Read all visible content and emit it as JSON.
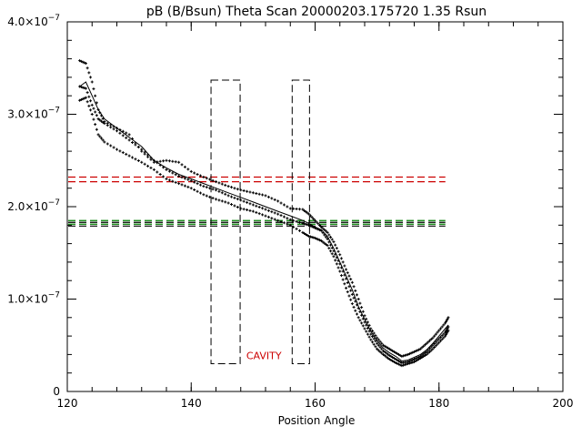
{
  "chart_data": {
    "type": "scatter",
    "title": "pB (B/Bsun) Theta Scan 20000203.175720 1.35 Rsun",
    "xlabel": "Position Angle",
    "ylabel": "",
    "xlim": [
      120,
      200
    ],
    "ylim": [
      0,
      4e-07
    ],
    "grid": false,
    "legend": "none",
    "x_ticks": [
      {
        "value": 120,
        "label": "120"
      },
      {
        "value": 140,
        "label": "140"
      },
      {
        "value": 160,
        "label": "160"
      },
      {
        "value": 180,
        "label": "180"
      },
      {
        "value": 200,
        "label": "200"
      }
    ],
    "y_ticks": [
      {
        "value": 0,
        "mant": "0",
        "exp": ""
      },
      {
        "value": 1e-07,
        "mant": "1.0×10",
        "exp": "−7"
      },
      {
        "value": 2e-07,
        "mant": "2.0×10",
        "exp": "−7"
      },
      {
        "value": 3e-07,
        "mant": "3.0×10",
        "exp": "−7"
      },
      {
        "value": 4e-07,
        "mant": "4.0×10",
        "exp": "−7"
      }
    ],
    "series": [
      {
        "role": "mean",
        "style": "line",
        "x": [
          122,
          123,
          124,
          125,
          126,
          128,
          130,
          132,
          134,
          136,
          138,
          140,
          142,
          144,
          146,
          148,
          150,
          152,
          154,
          156,
          158,
          159,
          160,
          161,
          162,
          163,
          164,
          165,
          166,
          167,
          168,
          169,
          170,
          171,
          172,
          173,
          174,
          175,
          176,
          177,
          178,
          179,
          180,
          181,
          181.5
        ],
        "y": [
          3.3e-07,
          3.35e-07,
          3.2e-07,
          3.05e-07,
          2.95e-07,
          2.85e-07,
          2.75e-07,
          2.65e-07,
          2.5e-07,
          2.42e-07,
          2.35e-07,
          2.3e-07,
          2.25e-07,
          2.2e-07,
          2.15e-07,
          2.1e-07,
          2.05e-07,
          2e-07,
          1.95e-07,
          1.9e-07,
          1.85e-07,
          1.82e-07,
          1.78e-07,
          1.75e-07,
          1.68e-07,
          1.55e-07,
          1.4e-07,
          1.25e-07,
          1.1e-07,
          9.2e-08,
          7.8e-08,
          6.5e-08,
          5.5e-08,
          4.7e-08,
          4.2e-08,
          3.8e-08,
          3.3e-08,
          3.4e-08,
          3.7e-08,
          4e-08,
          4.5e-08,
          5.2e-08,
          6e-08,
          6.8e-08,
          7.2e-08
        ]
      },
      {
        "role": "upper",
        "style": "plus",
        "x": [
          122,
          123,
          124,
          125,
          126,
          128,
          130,
          132,
          134,
          136,
          138,
          140,
          142,
          144,
          146,
          148,
          150,
          152,
          154,
          156,
          158,
          159,
          160,
          161,
          162,
          163,
          164,
          165,
          166,
          167,
          168,
          169,
          170,
          171,
          172,
          173,
          174,
          175,
          176,
          177,
          178,
          179,
          180,
          181,
          181.5
        ],
        "y": [
          3.58e-07,
          3.55e-07,
          3.35e-07,
          3.05e-07,
          2.92e-07,
          2.85e-07,
          2.78e-07,
          2.6e-07,
          2.48e-07,
          2.5e-07,
          2.48e-07,
          2.38e-07,
          2.32e-07,
          2.27e-07,
          2.22e-07,
          2.18e-07,
          2.15e-07,
          2.12e-07,
          2.06e-07,
          1.98e-07,
          1.97e-07,
          1.92e-07,
          1.85e-07,
          1.78e-07,
          1.72e-07,
          1.62e-07,
          1.48e-07,
          1.32e-07,
          1.18e-07,
          1e-07,
          8.2e-08,
          6.8e-08,
          5.8e-08,
          5e-08,
          4.6e-08,
          4.2e-08,
          3.8e-08,
          4e-08,
          4.3e-08,
          4.6e-08,
          5.2e-08,
          5.8e-08,
          6.6e-08,
          7.4e-08,
          8e-08
        ]
      },
      {
        "role": "middle",
        "style": "plus",
        "x": [
          122,
          123,
          124,
          125,
          126,
          128,
          130,
          132,
          134,
          136,
          138,
          140,
          142,
          144,
          146,
          148,
          150,
          152,
          154,
          156,
          158,
          159,
          160,
          161,
          162,
          163,
          164,
          165,
          166,
          167,
          168,
          169,
          170,
          171,
          172,
          173,
          174,
          175,
          176,
          177,
          178,
          179,
          180,
          181,
          181.5
        ],
        "y": [
          3.3e-07,
          3.28e-07,
          3.1e-07,
          2.95e-07,
          2.9e-07,
          2.82e-07,
          2.72e-07,
          2.62e-07,
          2.5e-07,
          2.4e-07,
          2.33e-07,
          2.28e-07,
          2.22e-07,
          2.18e-07,
          2.12e-07,
          2.07e-07,
          2.02e-07,
          1.97e-07,
          1.92e-07,
          1.86e-07,
          1.82e-07,
          1.8e-07,
          1.77e-07,
          1.74e-07,
          1.65e-07,
          1.52e-07,
          1.38e-07,
          1.22e-07,
          1.05e-07,
          9e-08,
          7.5e-08,
          6.2e-08,
          5.2e-08,
          4.4e-08,
          3.9e-08,
          3.5e-08,
          3.1e-08,
          3.2e-08,
          3.5e-08,
          3.8e-08,
          4.3e-08,
          5e-08,
          5.7e-08,
          6.4e-08,
          7e-08
        ]
      },
      {
        "role": "lower",
        "style": "plus",
        "x": [
          122,
          123,
          124,
          125,
          126,
          128,
          130,
          132,
          134,
          136,
          138,
          140,
          142,
          144,
          146,
          148,
          150,
          152,
          154,
          156,
          158,
          159,
          160,
          161,
          162,
          163,
          164,
          165,
          166,
          167,
          168,
          169,
          170,
          171,
          172,
          173,
          174,
          175,
          176,
          177,
          178,
          179,
          180,
          181,
          181.5
        ],
        "y": [
          3.15e-07,
          3.18e-07,
          3e-07,
          2.78e-07,
          2.7e-07,
          2.62e-07,
          2.55e-07,
          2.48e-07,
          2.4e-07,
          2.3e-07,
          2.25e-07,
          2.2e-07,
          2.13e-07,
          2.08e-07,
          2.04e-07,
          1.98e-07,
          1.95e-07,
          1.9e-07,
          1.85e-07,
          1.8e-07,
          1.72e-07,
          1.68e-07,
          1.66e-07,
          1.63e-07,
          1.58e-07,
          1.46e-07,
          1.3e-07,
          1.12e-07,
          9.5e-08,
          8e-08,
          6.8e-08,
          5.6e-08,
          4.6e-08,
          4e-08,
          3.5e-08,
          3.1e-08,
          2.8e-08,
          3e-08,
          3.2e-08,
          3.6e-08,
          4e-08,
          4.6e-08,
          5.3e-08,
          6e-08,
          6.6e-08
        ]
      }
    ],
    "reference_lines": [
      {
        "y": 2.32e-07,
        "color": "#cc0000",
        "style": "dashed"
      },
      {
        "y": 2.27e-07,
        "color": "#cc0000",
        "style": "dashed"
      },
      {
        "y": 1.85e-07,
        "color": "#008000",
        "style": "dashed"
      },
      {
        "y": 1.83e-07,
        "color": "#000000",
        "style": "dashed"
      },
      {
        "y": 1.81e-07,
        "color": "#008000",
        "style": "dashed"
      },
      {
        "y": 1.79e-07,
        "color": "#000000",
        "style": "dashed"
      }
    ],
    "regions": [
      {
        "x0": 143.2,
        "x1": 147.9,
        "y0": 3e-08,
        "y1": 3.37e-07,
        "color": "#000000",
        "style": "dashed"
      },
      {
        "x0": 156.3,
        "x1": 159.1,
        "y0": 3e-08,
        "y1": 3.37e-07,
        "color": "#000000",
        "style": "dashed"
      }
    ],
    "annotations": [
      {
        "text": "CAVITY",
        "x": 148.9,
        "y": 3.5e-08,
        "color": "#cc0000"
      }
    ]
  }
}
